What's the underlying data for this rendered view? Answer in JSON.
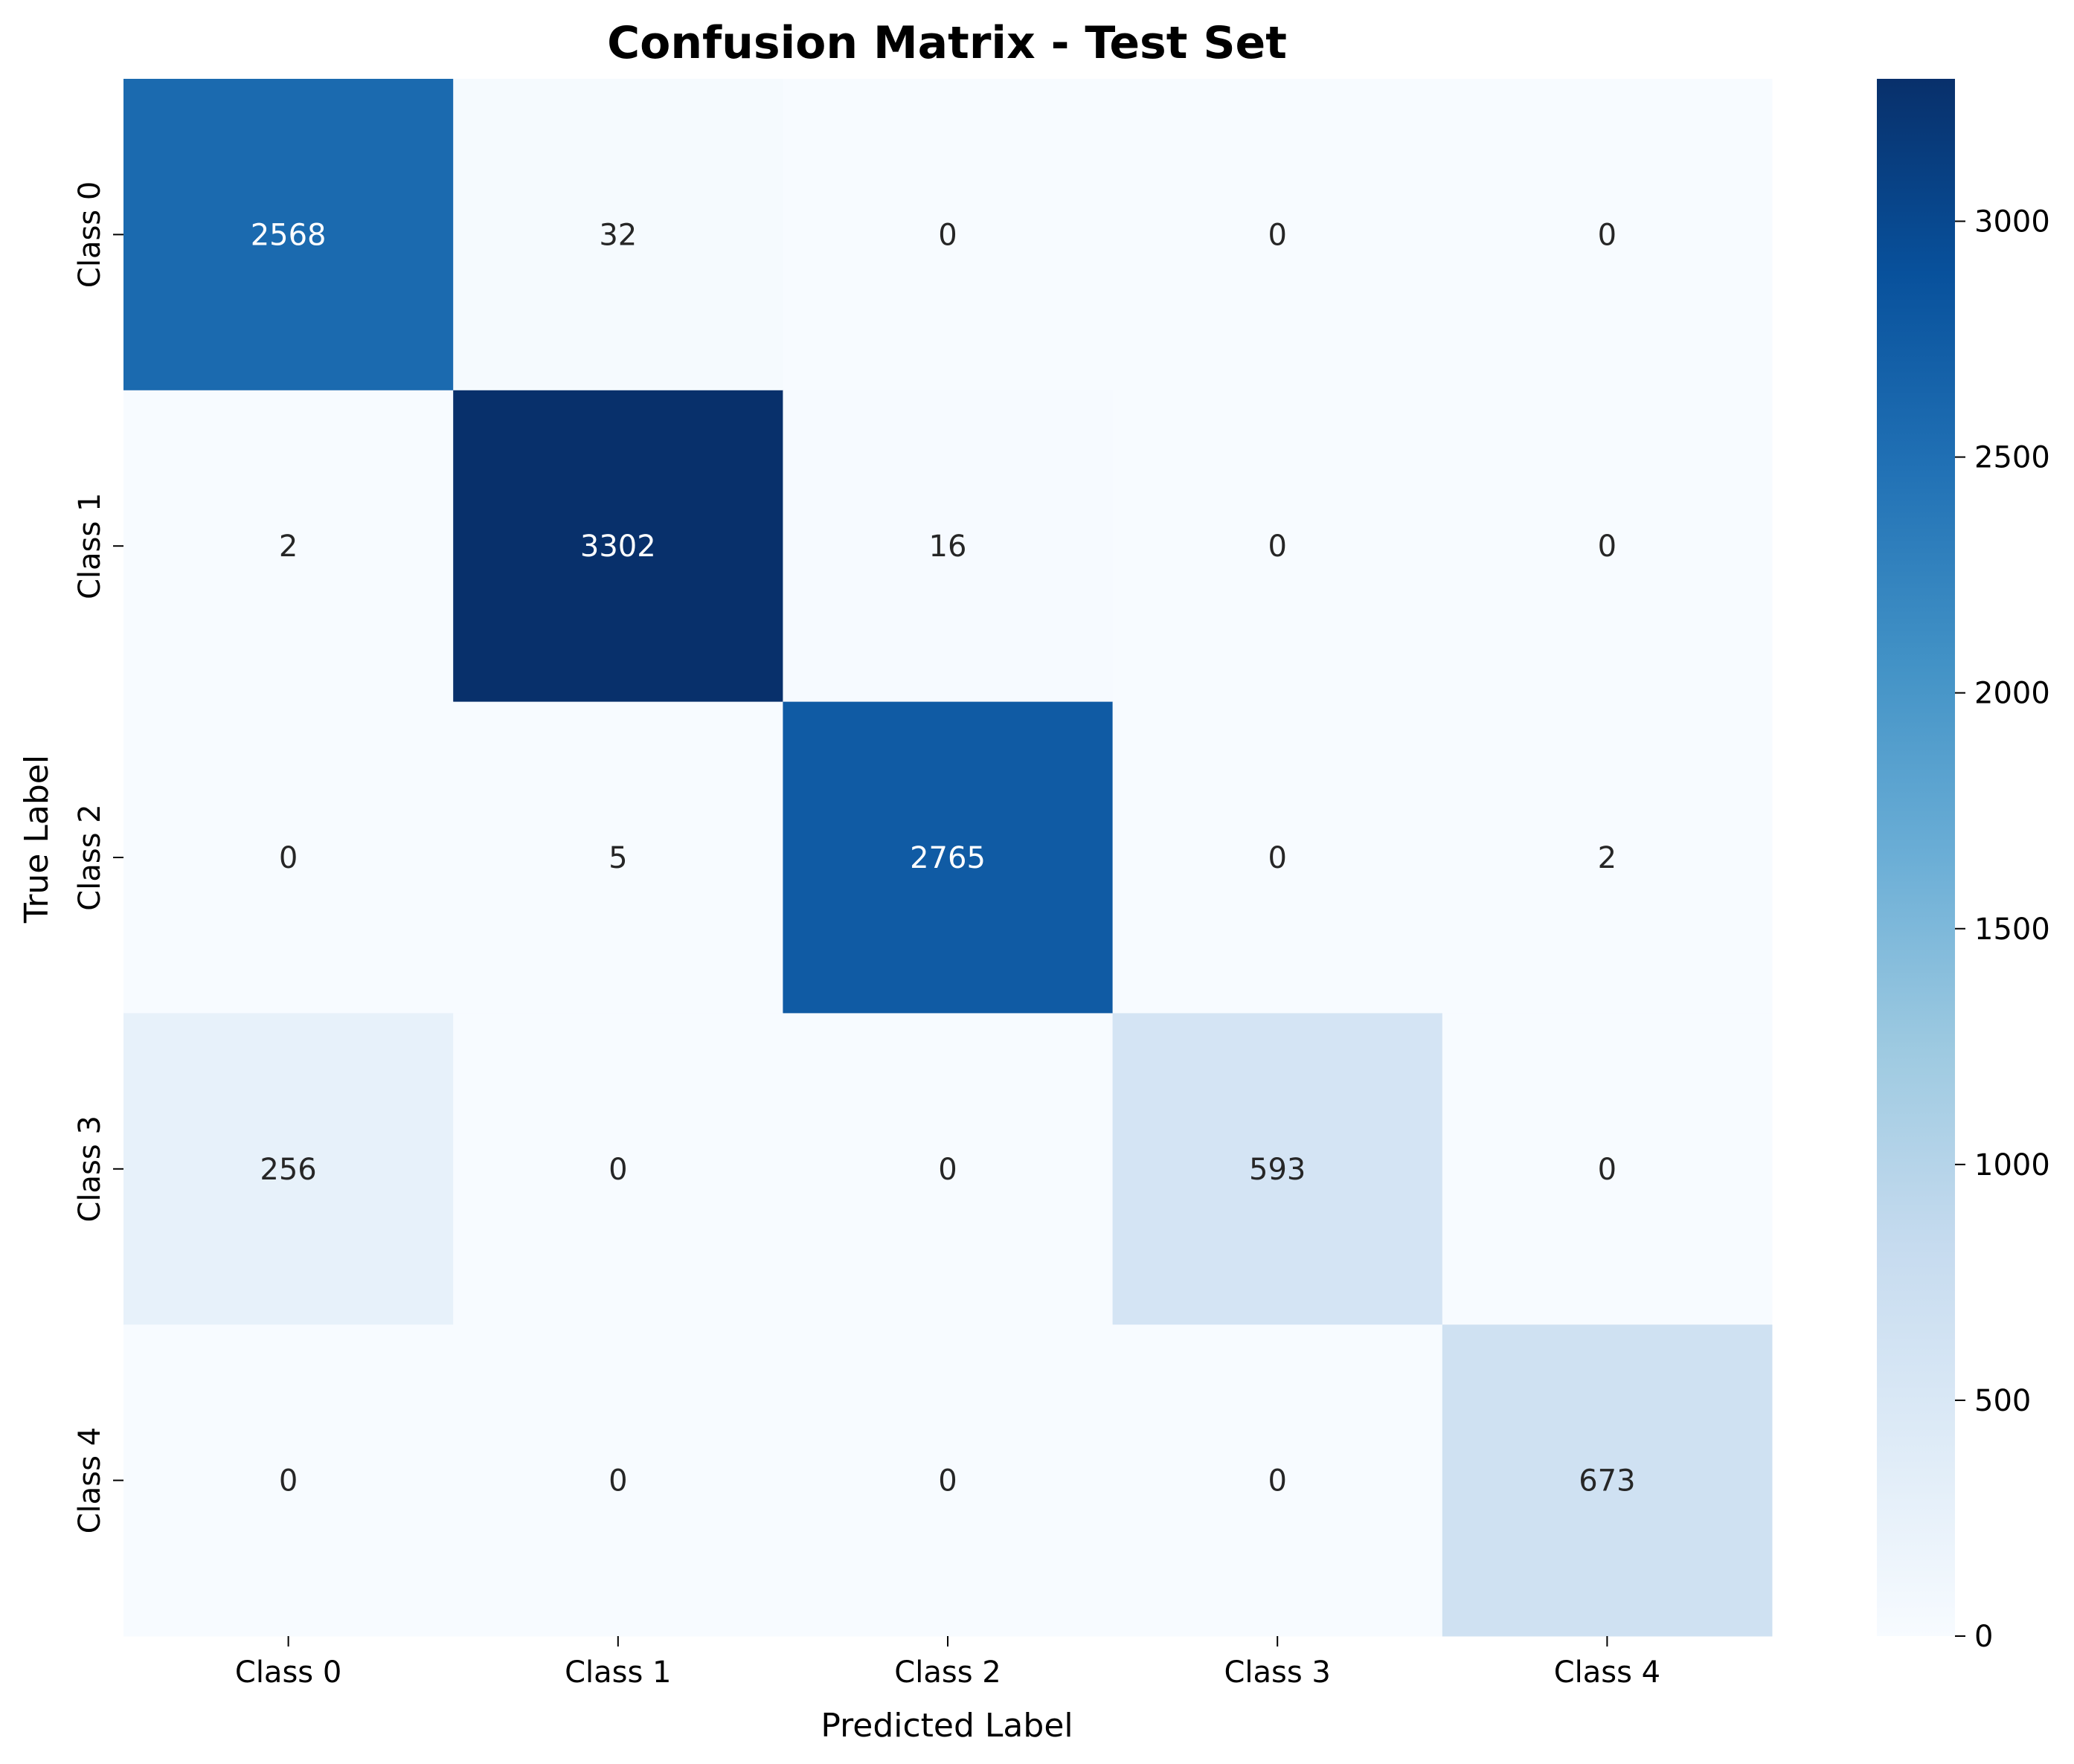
{
  "chart_data": {
    "type": "heatmap",
    "title": "Confusion Matrix - Test Set",
    "xlabel": "Predicted Label",
    "ylabel": "True Label",
    "x_categories": [
      "Class 0",
      "Class 1",
      "Class 2",
      "Class 3",
      "Class 4"
    ],
    "y_categories": [
      "Class 0",
      "Class 1",
      "Class 2",
      "Class 3",
      "Class 4"
    ],
    "values": [
      [
        2568,
        32,
        0,
        0,
        0
      ],
      [
        2,
        3302,
        16,
        0,
        0
      ],
      [
        0,
        5,
        2765,
        0,
        2
      ],
      [
        256,
        0,
        0,
        593,
        0
      ],
      [
        0,
        0,
        0,
        0,
        673
      ]
    ],
    "colormap": "Blues",
    "colorbar": {
      "range": [
        0,
        3302
      ],
      "ticks": [
        0,
        500,
        1000,
        1500,
        2000,
        2500,
        3000
      ],
      "tick_labels": [
        "0",
        "500",
        "1000",
        "1500",
        "2000",
        "2500",
        "3000"
      ]
    },
    "colors": {
      "low": "#f7fbff",
      "high": "#08306b",
      "light_text": "#ffffff",
      "dark_text": "#262626"
    }
  }
}
